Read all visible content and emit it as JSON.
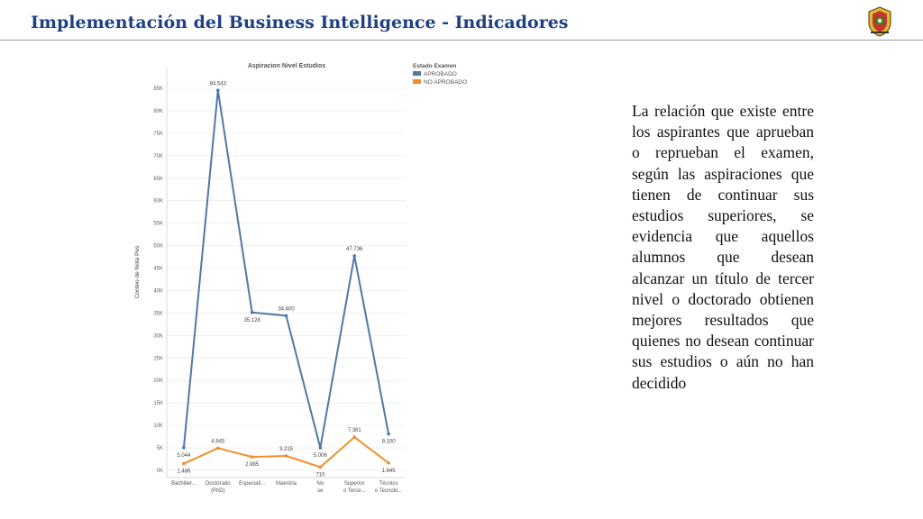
{
  "slide": {
    "title": "Implementación del Business Intelligence - Indicadores",
    "description": "La relación que existe entre los aspirantes que aprueban o reprueban el examen, según las aspiraciones que tienen de continuar sus estudios superiores, se evidencia que aquellos alumnos que desean alcanzar un título de tercer nivel o doctorado obtienen mejores resultados que quienes no desean continuar sus estudios o aún no han decidido"
  },
  "chart_data": {
    "type": "line",
    "title": "Aspiracion Nivel Estudios",
    "ylabel": "Conteo de Nota Pes",
    "xlabel": "",
    "legend_title": "Estado Examen",
    "legend_position": "top-right",
    "grid": true,
    "ylim": [
      0,
      85000
    ],
    "yticks": [
      0,
      5000,
      10000,
      15000,
      20000,
      25000,
      30000,
      35000,
      40000,
      45000,
      50000,
      55000,
      60000,
      65000,
      70000,
      75000,
      80000,
      85000
    ],
    "ytick_labels": [
      "0K",
      "5K",
      "10K",
      "15K",
      "20K",
      "25K",
      "30K",
      "35K",
      "40K",
      "45K",
      "50K",
      "55K",
      "60K",
      "65K",
      "70K",
      "75K",
      "80K",
      "85K"
    ],
    "categories": [
      "Bachiller...",
      "Doctorado (PhD)",
      "Especiali...",
      "Maestria",
      "No se",
      "Superior o Terce...",
      "Técnico o Tecnoló..."
    ],
    "series": [
      {
        "name": "APROBADO",
        "color": "#4e79a7",
        "values": [
          5044,
          84543,
          35128,
          34400,
          5006,
          47736,
          8100
        ],
        "labels": [
          "5.044",
          "84.543",
          "35.128",
          "34.400",
          "5.006",
          "47.736",
          "8.100"
        ]
      },
      {
        "name": "NO APROBADO",
        "color": "#f28e2b",
        "values": [
          1486,
          4945,
          2985,
          3215,
          710,
          7381,
          1645
        ],
        "labels": [
          "1.486",
          "4.945",
          "2.985",
          "3.215",
          "710",
          "7.381",
          "1.645"
        ]
      }
    ]
  }
}
